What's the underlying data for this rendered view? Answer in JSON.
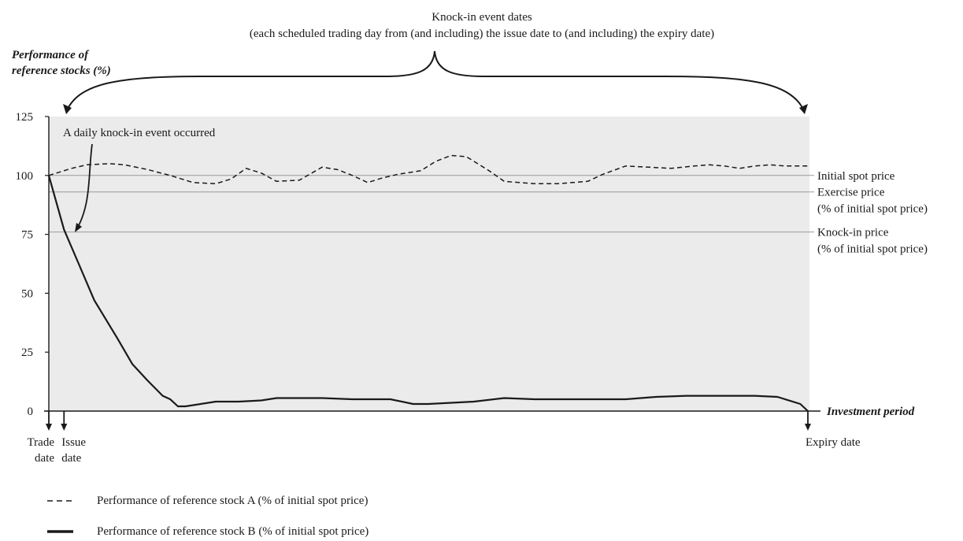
{
  "chart_data": {
    "type": "line",
    "title": "Knock-in event dates",
    "subtitle": "(each scheduled trading day from (and including) the issue date to (and including) the expiry date)",
    "ylabel_lines": [
      "Performance of",
      "reference stocks (%)"
    ],
    "xlabel": "Investment period",
    "ylim": [
      0,
      125
    ],
    "yticks": [
      0,
      25,
      50,
      75,
      100,
      125
    ],
    "xlim": [
      0,
      100
    ],
    "grid": false,
    "annotation": "A daily knock-in event occurred",
    "reference_lines": [
      {
        "y": 100,
        "lines": [
          "Initial spot price"
        ]
      },
      {
        "y": 93,
        "lines": [
          "Exercise price",
          "(% of initial spot price)"
        ]
      },
      {
        "y": 76,
        "lines": [
          "Knock-in price",
          "(% of initial spot price)"
        ]
      }
    ],
    "date_markers": [
      {
        "x": 0,
        "lines": [
          "Trade",
          "date"
        ],
        "align": "end"
      },
      {
        "x": 2,
        "lines": [
          "Issue",
          "date"
        ],
        "align": "start"
      },
      {
        "x": 100,
        "lines": [
          "Expiry date"
        ],
        "align": "start"
      }
    ],
    "series": [
      {
        "name": "Performance of reference stock A (% of initial spot price)",
        "style": "dashed",
        "x": [
          0,
          3,
          5,
          8,
          10,
          13,
          16,
          19,
          22,
          24,
          26,
          28,
          30,
          33,
          36,
          38,
          40,
          42,
          44,
          46,
          49,
          51,
          53,
          55,
          58,
          60,
          62,
          64,
          67,
          69,
          71,
          73,
          76,
          79,
          82,
          85,
          87,
          89,
          91,
          93,
          95,
          97,
          100
        ],
        "y": [
          100,
          103,
          104.5,
          105,
          104.5,
          102.5,
          100,
          97,
          96.5,
          98.5,
          103,
          101,
          97.5,
          98,
          103.5,
          102.5,
          100,
          97,
          99,
          100.5,
          102,
          106,
          108.5,
          108,
          102,
          97.5,
          97,
          96.5,
          96.5,
          97,
          97.5,
          100.5,
          104,
          103.5,
          103,
          104,
          104.5,
          104,
          103,
          104,
          104.5,
          104,
          104
        ]
      },
      {
        "name": "Performance of reference stock B (% of initial spot price)",
        "style": "solid",
        "x": [
          0,
          2,
          4,
          6,
          9,
          11,
          13,
          15,
          16,
          17,
          18,
          19,
          22,
          25,
          28,
          30,
          33,
          36,
          40,
          45,
          48,
          50,
          53,
          56,
          60,
          64,
          68,
          72,
          76,
          80,
          84,
          87,
          90,
          93,
          96,
          99,
          100
        ],
        "y": [
          100,
          77,
          62,
          47,
          31,
          20,
          13,
          6.5,
          5,
          2,
          2,
          2.5,
          4,
          4,
          4.5,
          5.5,
          5.5,
          5.5,
          5,
          5,
          3,
          3,
          3.5,
          4,
          5.5,
          5,
          5,
          5,
          5,
          6,
          6.5,
          6.5,
          6.5,
          6.5,
          6,
          3,
          0
        ]
      }
    ]
  }
}
